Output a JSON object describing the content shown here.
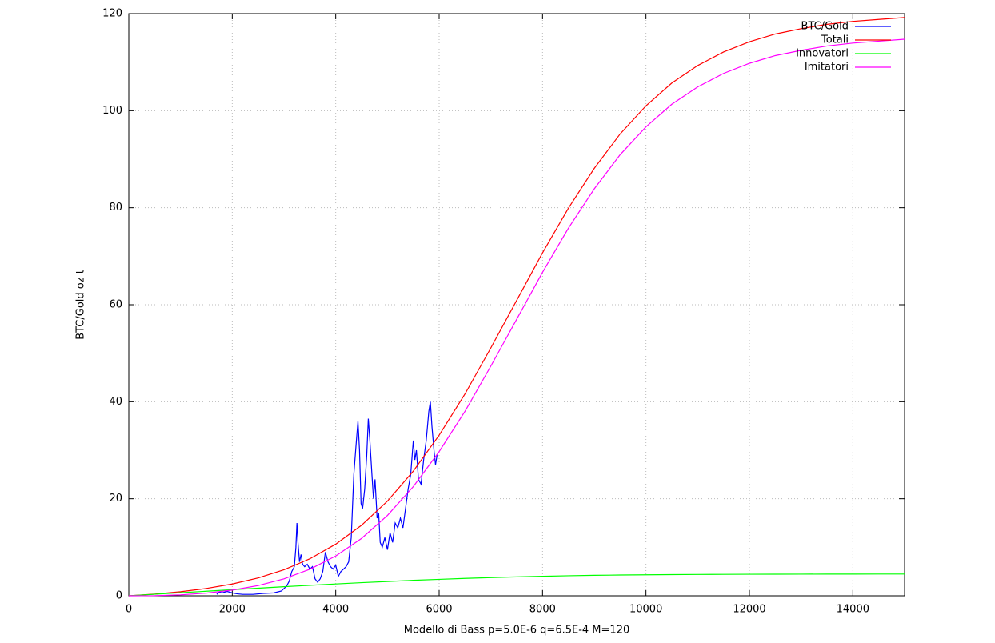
{
  "chart_data": {
    "type": "line",
    "xlabel": "Modello di Bass p=5.0E-6 q=6.5E-4 M=120",
    "ylabel": "BTC/Gold oz t",
    "xlim": [
      0,
      15000
    ],
    "ylim": [
      0,
      120
    ],
    "xticks": [
      0,
      2000,
      4000,
      6000,
      8000,
      10000,
      12000,
      14000
    ],
    "yticks": [
      0,
      20,
      40,
      60,
      80,
      100,
      120
    ],
    "grid": true,
    "legend": "top-right",
    "x": [
      0,
      500,
      1000,
      1500,
      2000,
      2500,
      3000,
      3500,
      4000,
      4500,
      5000,
      5500,
      6000,
      6500,
      7000,
      7500,
      8000,
      8500,
      9000,
      9500,
      10000,
      10500,
      11000,
      11500,
      12000,
      12500,
      13000,
      13500,
      14000,
      14500,
      15000
    ],
    "series": [
      {
        "name": "BTC/Gold",
        "color": "#0000ff",
        "x": [
          1700,
          1750,
          1800,
          1900,
          2000,
          2100,
          2200,
          2400,
          2600,
          2800,
          2950,
          3050,
          3100,
          3150,
          3200,
          3230,
          3250,
          3270,
          3300,
          3330,
          3360,
          3400,
          3450,
          3500,
          3550,
          3600,
          3650,
          3700,
          3750,
          3800,
          3850,
          3900,
          3950,
          4000,
          4050,
          4100,
          4150,
          4200,
          4250,
          4300,
          4350,
          4400,
          4430,
          4460,
          4490,
          4520,
          4560,
          4600,
          4630,
          4660,
          4700,
          4730,
          4760,
          4800,
          4830,
          4860,
          4900,
          4950,
          5000,
          5050,
          5100,
          5150,
          5200,
          5250,
          5300,
          5350,
          5400,
          5450,
          5500,
          5530,
          5560,
          5600,
          5650,
          5700,
          5750,
          5800,
          5830,
          5860,
          5900,
          5930,
          5960
        ],
        "values": [
          0.3,
          0.8,
          0.6,
          0.9,
          0.6,
          0.4,
          0.3,
          0.3,
          0.5,
          0.6,
          1.0,
          2,
          3,
          5,
          6,
          10,
          15,
          11,
          7,
          8.5,
          6.5,
          6,
          6.5,
          5.5,
          6,
          3.5,
          2.8,
          3.5,
          5,
          9,
          7,
          6,
          5.5,
          6.3,
          4,
          5,
          5.5,
          6,
          7,
          12,
          25,
          32,
          36,
          30,
          19,
          18,
          22,
          29,
          36.5,
          32,
          25,
          20,
          24,
          16,
          17,
          11,
          10,
          12,
          9.5,
          13,
          11,
          15,
          14,
          16,
          14,
          18,
          22,
          25,
          32,
          28,
          30,
          24,
          23,
          28,
          32,
          38,
          40,
          35,
          30,
          27,
          29
        ]
      },
      {
        "name": "Totali",
        "color": "#ff0000",
        "values": [
          0,
          0.35,
          0.84,
          1.51,
          2.43,
          3.68,
          5.37,
          7.63,
          10.64,
          14.54,
          19.51,
          25.69,
          33.1,
          41.6,
          51.1,
          60.9,
          70.7,
          79.9,
          88.1,
          95.2,
          101.0,
          105.7,
          109.3,
          112.1,
          114.2,
          115.8,
          116.9,
          117.8,
          118.4,
          118.8,
          119.2
        ]
      },
      {
        "name": "Innovatori",
        "color": "#00ff00",
        "values": [
          0,
          0.32,
          0.64,
          0.95,
          1.26,
          1.57,
          1.87,
          2.16,
          2.44,
          2.71,
          2.95,
          3.19,
          3.39,
          3.58,
          3.75,
          3.9,
          4.02,
          4.13,
          4.22,
          4.28,
          4.33,
          4.37,
          4.4,
          4.42,
          4.44,
          4.45,
          4.46,
          4.47,
          4.47,
          4.48,
          4.48
        ]
      },
      {
        "name": "Imitatori",
        "color": "#ff00ff",
        "values": [
          0,
          0.03,
          0.2,
          0.56,
          1.17,
          2.11,
          3.5,
          5.47,
          8.2,
          11.83,
          16.56,
          22.5,
          29.71,
          38.02,
          47.35,
          57.0,
          66.68,
          75.77,
          83.88,
          90.92,
          96.67,
          101.33,
          104.9,
          107.68,
          109.76,
          111.35,
          112.44,
          113.33,
          113.93,
          114.32,
          114.72
        ]
      }
    ]
  }
}
